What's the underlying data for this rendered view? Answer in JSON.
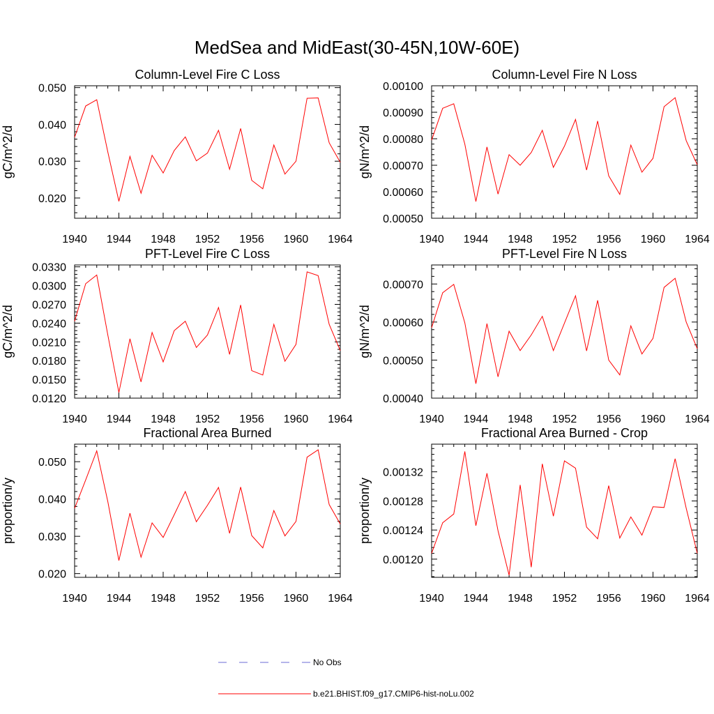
{
  "figure": {
    "title": "MedSea and MidEast(30-45N,10W-60E)"
  },
  "legend": {
    "items": [
      {
        "label": "No Obs",
        "color": "#6b6bd6",
        "dash": "dashed"
      },
      {
        "label": "b.e21.BHIST.f09_g17.CMIP6-hist-noLu.002",
        "color": "#ff0000",
        "dash": "solid"
      }
    ]
  },
  "chart_data": [
    {
      "type": "line",
      "title": "Column-Level Fire C Loss",
      "ylabel": "gC/m^2/d",
      "x": [
        1940,
        1941,
        1942,
        1943,
        1944,
        1945,
        1946,
        1947,
        1948,
        1949,
        1950,
        1951,
        1952,
        1953,
        1954,
        1955,
        1956,
        1957,
        1958,
        1959,
        1960,
        1961,
        1962,
        1963,
        1964
      ],
      "xlim": [
        1940,
        1964
      ],
      "xticks": [
        "1940",
        "1944",
        "1948",
        "1952",
        "1956",
        "1960",
        "1964"
      ],
      "ylim": [
        0.0145,
        0.0505
      ],
      "yticks": [
        "0.020",
        "0.030",
        "0.040",
        "0.050"
      ],
      "series": [
        {
          "name": "b.e21.BHIST.f09_g17.CMIP6-hist-noLu.002",
          "color": "#ff0000",
          "values": [
            0.0365,
            0.045,
            0.0467,
            0.0325,
            0.0191,
            0.0313,
            0.0213,
            0.0316,
            0.0268,
            0.0329,
            0.0366,
            0.0301,
            0.0322,
            0.0384,
            0.0278,
            0.0389,
            0.0248,
            0.0225,
            0.0344,
            0.0265,
            0.03,
            0.0471,
            0.0472,
            0.035,
            0.0297
          ]
        }
      ]
    },
    {
      "type": "line",
      "title": "Column-Level Fire N Loss",
      "ylabel": "gN/m^2/d",
      "x": [
        1940,
        1941,
        1942,
        1943,
        1944,
        1945,
        1946,
        1947,
        1948,
        1949,
        1950,
        1951,
        1952,
        1953,
        1954,
        1955,
        1956,
        1957,
        1958,
        1959,
        1960,
        1961,
        1962,
        1963,
        1964
      ],
      "xlim": [
        1940,
        1964
      ],
      "xticks": [
        "1940",
        "1944",
        "1948",
        "1952",
        "1956",
        "1960",
        "1964"
      ],
      "ylim": [
        0.0005,
        0.001
      ],
      "yticks": [
        "0.00050",
        "0.00060",
        "0.00070",
        "0.00080",
        "0.00090",
        "0.00100"
      ],
      "series": [
        {
          "name": "b.e21.BHIST.f09_g17.CMIP6-hist-noLu.002",
          "color": "#ff0000",
          "values": [
            0.000795,
            0.000915,
            0.000932,
            0.00078,
            0.000563,
            0.000769,
            0.000591,
            0.00074,
            0.0007,
            0.000748,
            0.000832,
            0.000692,
            0.000772,
            0.000873,
            0.000682,
            0.000867,
            0.00066,
            0.00059,
            0.000776,
            0.000674,
            0.000726,
            0.000921,
            0.000955,
            0.000793,
            0.000702
          ]
        }
      ]
    },
    {
      "type": "line",
      "title": "PFT-Level Fire C Loss",
      "ylabel": "gC/m^2/d",
      "x": [
        1940,
        1941,
        1942,
        1943,
        1944,
        1945,
        1946,
        1947,
        1948,
        1949,
        1950,
        1951,
        1952,
        1953,
        1954,
        1955,
        1956,
        1957,
        1958,
        1959,
        1960,
        1961,
        1962,
        1963,
        1964
      ],
      "xlim": [
        1940,
        1964
      ],
      "xticks": [
        "1940",
        "1944",
        "1948",
        "1952",
        "1956",
        "1960",
        "1964"
      ],
      "ylim": [
        0.012,
        0.0333
      ],
      "yticks": [
        "0.0120",
        "0.0150",
        "0.0180",
        "0.0210",
        "0.0240",
        "0.0270",
        "0.0300",
        "0.0330"
      ],
      "series": [
        {
          "name": "b.e21.BHIST.f09_g17.CMIP6-hist-noLu.002",
          "color": "#ff0000",
          "values": [
            0.0243,
            0.0303,
            0.0317,
            0.0221,
            0.0129,
            0.0215,
            0.0146,
            0.0225,
            0.0178,
            0.0228,
            0.0243,
            0.0201,
            0.0221,
            0.0265,
            0.019,
            0.0269,
            0.0164,
            0.0157,
            0.0238,
            0.0179,
            0.0206,
            0.0322,
            0.0316,
            0.0238,
            0.0196
          ]
        }
      ]
    },
    {
      "type": "line",
      "title": "PFT-Level Fire N Loss",
      "ylabel": "gN/m^2/d",
      "x": [
        1940,
        1941,
        1942,
        1943,
        1944,
        1945,
        1946,
        1947,
        1948,
        1949,
        1950,
        1951,
        1952,
        1953,
        1954,
        1955,
        1956,
        1957,
        1958,
        1959,
        1960,
        1961,
        1962,
        1963,
        1964
      ],
      "xlim": [
        1940,
        1964
      ],
      "xticks": [
        "1940",
        "1944",
        "1948",
        "1952",
        "1956",
        "1960",
        "1964"
      ],
      "ylim": [
        0.0004,
        0.00075
      ],
      "yticks": [
        "0.00040",
        "0.00050",
        "0.00060",
        "0.00070"
      ],
      "series": [
        {
          "name": "b.e21.BHIST.f09_g17.CMIP6-hist-noLu.002",
          "color": "#ff0000",
          "values": [
            0.000585,
            0.000677,
            0.000699,
            0.000598,
            0.000438,
            0.000596,
            0.000456,
            0.000576,
            0.000525,
            0.000566,
            0.000615,
            0.000525,
            0.000597,
            0.000669,
            0.000524,
            0.000657,
            0.0005,
            0.000461,
            0.00059,
            0.000516,
            0.000557,
            0.000691,
            0.000715,
            0.0006,
            0.00053
          ]
        }
      ]
    },
    {
      "type": "line",
      "title": "Fractional Area Burned",
      "ylabel": "proportion/y",
      "x": [
        1940,
        1941,
        1942,
        1943,
        1944,
        1945,
        1946,
        1947,
        1948,
        1949,
        1950,
        1951,
        1952,
        1953,
        1954,
        1955,
        1956,
        1957,
        1958,
        1959,
        1960,
        1961,
        1962,
        1963,
        1964
      ],
      "xlim": [
        1940,
        1964
      ],
      "xticks": [
        "1940",
        "1944",
        "1948",
        "1952",
        "1956",
        "1960",
        "1964"
      ],
      "ylim": [
        0.019,
        0.0547
      ],
      "yticks": [
        "0.020",
        "0.030",
        "0.040",
        "0.050"
      ],
      "series": [
        {
          "name": "b.e21.BHIST.f09_g17.CMIP6-hist-noLu.002",
          "color": "#ff0000",
          "values": [
            0.0375,
            0.0451,
            0.0529,
            0.0393,
            0.0235,
            0.0362,
            0.0244,
            0.0336,
            0.0297,
            0.0358,
            0.042,
            0.0339,
            0.0383,
            0.0431,
            0.0308,
            0.0432,
            0.0302,
            0.0269,
            0.0369,
            0.0301,
            0.034,
            0.0512,
            0.0532,
            0.0385,
            0.0333
          ]
        }
      ]
    },
    {
      "type": "line",
      "title": "Fractional Area Burned - Crop",
      "ylabel": "proportion/y",
      "x": [
        1940,
        1941,
        1942,
        1943,
        1944,
        1945,
        1946,
        1947,
        1948,
        1949,
        1950,
        1951,
        1952,
        1953,
        1954,
        1955,
        1956,
        1957,
        1958,
        1959,
        1960,
        1961,
        1962,
        1963,
        1964
      ],
      "xlim": [
        1940,
        1964
      ],
      "xticks": [
        "1940",
        "1944",
        "1948",
        "1952",
        "1956",
        "1960",
        "1964"
      ],
      "ylim": [
        0.001175,
        0.001358
      ],
      "yticks": [
        "0.00120",
        "0.00124",
        "0.00128",
        "0.00132"
      ],
      "series": [
        {
          "name": "b.e21.BHIST.f09_g17.CMIP6-hist-noLu.002",
          "color": "#ff0000",
          "values": [
            0.001208,
            0.00125,
            0.001262,
            0.001348,
            0.001246,
            0.001318,
            0.001239,
            0.001178,
            0.001302,
            0.001189,
            0.001331,
            0.001259,
            0.001335,
            0.001325,
            0.001244,
            0.001228,
            0.001301,
            0.001229,
            0.001258,
            0.001233,
            0.001272,
            0.001271,
            0.001338,
            0.00127,
            0.001208
          ]
        }
      ]
    }
  ]
}
